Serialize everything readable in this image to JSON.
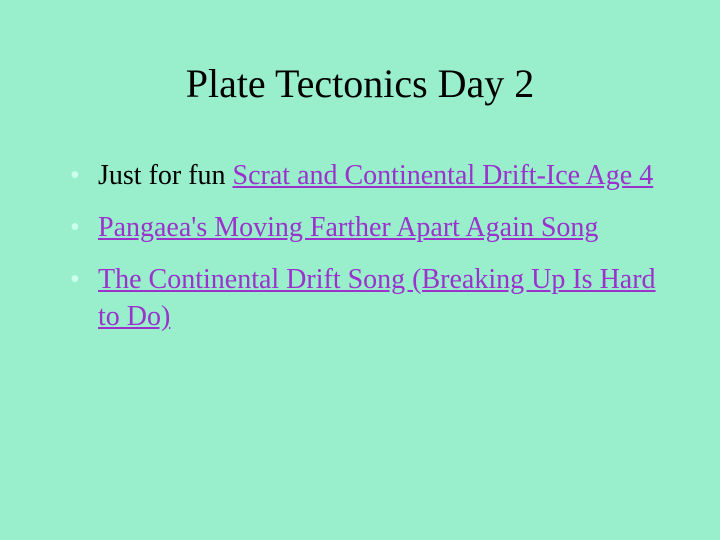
{
  "slide": {
    "background_color": "#99eecc",
    "title": {
      "text": "Plate Tectonics Day 2",
      "color": "#000000",
      "fontsize": 40
    },
    "bullets": {
      "fontsize": 28,
      "text_color": "#000000",
      "link_color": "#9933cc",
      "bullet_color": "#ccffee",
      "items": [
        {
          "prefix": "Just for fun ",
          "link": "Scrat and Continental Drift-Ice Age 4"
        },
        {
          "prefix": "",
          "link": "Pangaea's Moving Farther Apart Again Song"
        },
        {
          "prefix": "",
          "link": "The Continental Drift Song (Breaking Up Is Hard to Do)"
        }
      ]
    }
  }
}
